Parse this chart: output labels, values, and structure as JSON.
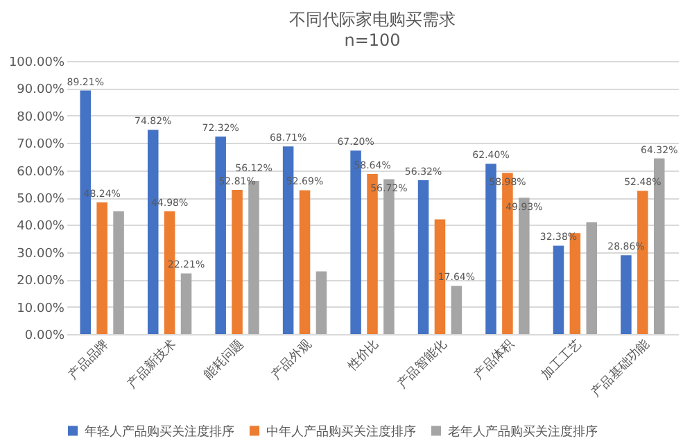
{
  "chart_data": {
    "type": "bar",
    "title": "不同代际家电购买需求",
    "subtitle": "n=100",
    "categories": [
      "产品品牌",
      "产品新技术",
      "能耗问题",
      "产品外观",
      "性价比",
      "产品智能化",
      "产品体积",
      "加工工艺",
      "产品基础功能"
    ],
    "series": [
      {
        "name": "年轻人产品购买关注度排序",
        "color": "#4472c4",
        "values": [
          89.21,
          74.82,
          72.32,
          68.71,
          67.2,
          56.32,
          62.4,
          32.38,
          28.86
        ],
        "value_labels": [
          "89.21%",
          "74.82%",
          "72.32%",
          "68.71%",
          "67.20%",
          "56.32%",
          "62.40%",
          "32.38%",
          "28.86%"
        ]
      },
      {
        "name": "中年人产品购买关注度排序",
        "color": "#ed7d31",
        "values": [
          48.24,
          44.98,
          52.81,
          52.69,
          58.64,
          42,
          58.98,
          37,
          52.48
        ],
        "value_labels": [
          "48.24%",
          "44.98%",
          "52.81%",
          "52.69%",
          "58.64%",
          null,
          "58.98%",
          null,
          "52.48%"
        ]
      },
      {
        "name": "老年人产品购买关注度排序",
        "color": "#a5a5a5",
        "values": [
          45,
          22.21,
          56.12,
          23,
          56.72,
          17.64,
          49.93,
          41,
          64.32
        ],
        "value_labels": [
          null,
          "22.21%",
          "56.12%",
          null,
          "56.72%",
          "17.64%",
          "49.93%",
          null,
          "64.32%"
        ]
      }
    ],
    "ylim": [
      0,
      100
    ],
    "yticks": [
      {
        "value": 0,
        "label": "0.00%"
      },
      {
        "value": 10,
        "label": "10.00%"
      },
      {
        "value": 20,
        "label": "20.00%"
      },
      {
        "value": 30,
        "label": "30.00%"
      },
      {
        "value": 40,
        "label": "40.00%"
      },
      {
        "value": 50,
        "label": "50.00%"
      },
      {
        "value": 60,
        "label": "60.00%"
      },
      {
        "value": 70,
        "label": "70.00%"
      },
      {
        "value": 80,
        "label": "80.00%"
      },
      {
        "value": 90,
        "label": "90.00%"
      },
      {
        "value": 100,
        "label": "100.00%"
      }
    ],
    "grid": "y",
    "legend": "bottom"
  }
}
